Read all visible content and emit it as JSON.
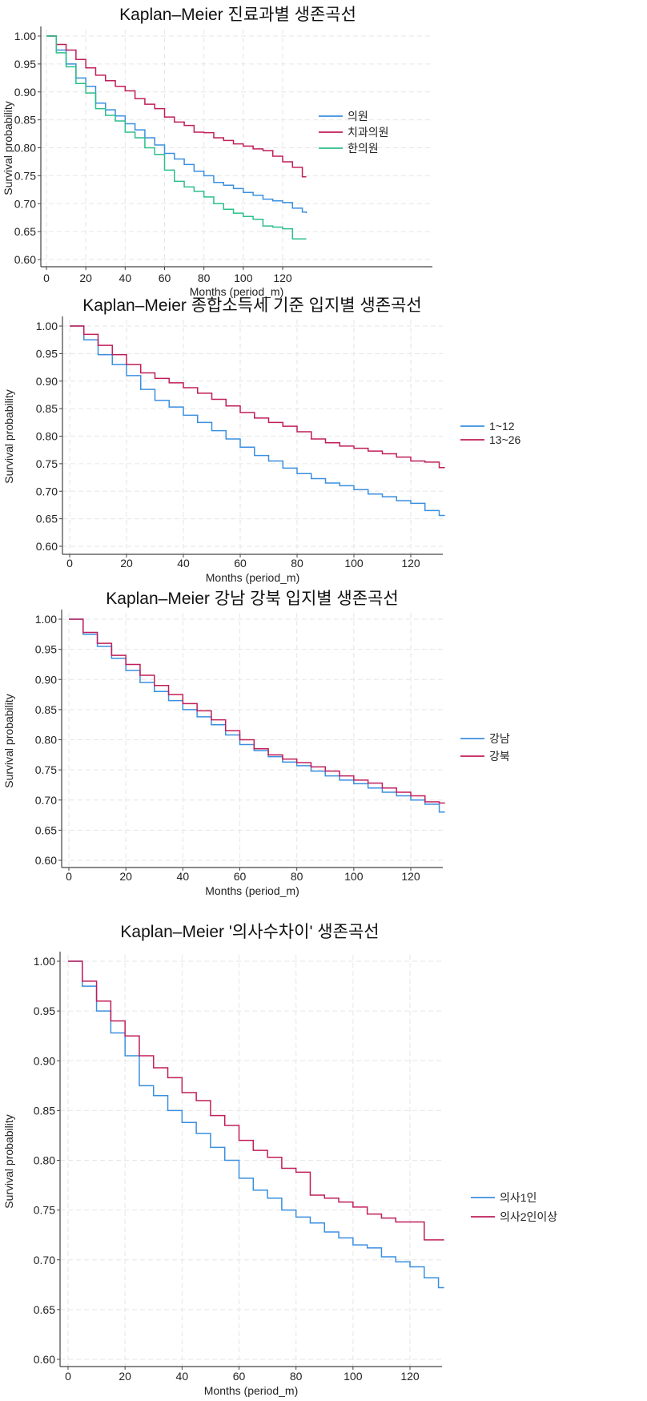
{
  "chart_data": [
    {
      "type": "line",
      "title": "Kaplan–Meier 진료과별 생존곡선",
      "xlabel": "Months (period_m)",
      "ylabel": "Survival probability",
      "xlim": [
        0,
        132
      ],
      "ylim": [
        0.6,
        1.0
      ],
      "xticks": [
        "0",
        "20",
        "40",
        "60",
        "80",
        "100",
        "120"
      ],
      "yticks": [
        "0.60",
        "0.65",
        "0.70",
        "0.75",
        "0.80",
        "0.85",
        "0.90",
        "0.95",
        "1.00"
      ],
      "grid": true,
      "legend_position": "right",
      "x": [
        0,
        5,
        10,
        15,
        20,
        25,
        30,
        35,
        40,
        45,
        50,
        55,
        60,
        65,
        70,
        75,
        80,
        85,
        90,
        95,
        100,
        105,
        110,
        115,
        120,
        125,
        130,
        132
      ],
      "series": [
        {
          "name": "의원",
          "color": "#3a8fe0",
          "values": [
            1,
            0.975,
            0.95,
            0.925,
            0.91,
            0.88,
            0.868,
            0.857,
            0.843,
            0.832,
            0.818,
            0.805,
            0.79,
            0.78,
            0.77,
            0.758,
            0.75,
            0.738,
            0.733,
            0.727,
            0.72,
            0.715,
            0.708,
            0.705,
            0.702,
            0.692,
            0.685,
            0.683
          ]
        },
        {
          "name": "치과의원",
          "color": "#c01e5a",
          "values": [
            1,
            0.985,
            0.975,
            0.958,
            0.943,
            0.93,
            0.92,
            0.91,
            0.902,
            0.888,
            0.878,
            0.87,
            0.855,
            0.846,
            0.84,
            0.828,
            0.827,
            0.818,
            0.813,
            0.807,
            0.803,
            0.798,
            0.795,
            0.785,
            0.775,
            0.765,
            0.748,
            0.748
          ]
        },
        {
          "name": "한의원",
          "color": "#2bbf8a",
          "values": [
            1,
            0.97,
            0.945,
            0.915,
            0.898,
            0.87,
            0.858,
            0.848,
            0.828,
            0.818,
            0.8,
            0.788,
            0.76,
            0.74,
            0.73,
            0.722,
            0.712,
            0.7,
            0.69,
            0.683,
            0.677,
            0.672,
            0.66,
            0.658,
            0.655,
            0.637,
            0.637,
            0.637
          ]
        }
      ]
    },
    {
      "type": "line",
      "title": "Kaplan–Meier 종합소득세 기준 입지별 생존곡선",
      "xlabel": "Months (period_m)",
      "ylabel": "Survival probability",
      "xlim": [
        0,
        132
      ],
      "ylim": [
        0.6,
        1.0
      ],
      "xticks": [
        "0",
        "20",
        "40",
        "60",
        "80",
        "100",
        "120"
      ],
      "yticks": [
        "0.60",
        "0.65",
        "0.70",
        "0.75",
        "0.80",
        "0.85",
        "0.90",
        "0.95",
        "1.00"
      ],
      "grid": true,
      "legend_position": "right",
      "x": [
        0,
        5,
        10,
        15,
        20,
        25,
        30,
        35,
        40,
        45,
        50,
        55,
        60,
        65,
        70,
        75,
        80,
        85,
        90,
        95,
        100,
        105,
        110,
        115,
        120,
        125,
        130,
        132
      ],
      "series": [
        {
          "name": "1~12",
          "color": "#3a8fe0",
          "values": [
            1,
            0.975,
            0.948,
            0.93,
            0.91,
            0.885,
            0.865,
            0.853,
            0.838,
            0.825,
            0.81,
            0.795,
            0.78,
            0.765,
            0.755,
            0.742,
            0.732,
            0.723,
            0.715,
            0.71,
            0.703,
            0.695,
            0.69,
            0.683,
            0.678,
            0.665,
            0.656,
            0.656
          ]
        },
        {
          "name": "13~26",
          "color": "#c01e5a",
          "values": [
            1,
            0.985,
            0.965,
            0.948,
            0.93,
            0.915,
            0.905,
            0.897,
            0.888,
            0.878,
            0.867,
            0.855,
            0.843,
            0.833,
            0.825,
            0.818,
            0.808,
            0.795,
            0.788,
            0.782,
            0.778,
            0.773,
            0.768,
            0.762,
            0.755,
            0.753,
            0.743,
            0.743
          ]
        }
      ]
    },
    {
      "type": "line",
      "title": "Kaplan–Meier 강남 강북 입지별 생존곡선",
      "xlabel": "Months (period_m)",
      "ylabel": "Survival probability",
      "xlim": [
        0,
        132
      ],
      "ylim": [
        0.6,
        1.0
      ],
      "xticks": [
        "0",
        "20",
        "40",
        "60",
        "80",
        "100",
        "120"
      ],
      "yticks": [
        "0.60",
        "0.65",
        "0.70",
        "0.75",
        "0.80",
        "0.85",
        "0.90",
        "0.95",
        "1.00"
      ],
      "grid": true,
      "legend_position": "right",
      "x": [
        0,
        5,
        10,
        15,
        20,
        25,
        30,
        35,
        40,
        45,
        50,
        55,
        60,
        65,
        70,
        75,
        80,
        85,
        90,
        95,
        100,
        105,
        110,
        115,
        120,
        125,
        130,
        132
      ],
      "series": [
        {
          "name": "강남",
          "color": "#3a8fe0",
          "values": [
            1,
            0.975,
            0.955,
            0.935,
            0.915,
            0.895,
            0.88,
            0.865,
            0.85,
            0.838,
            0.825,
            0.808,
            0.792,
            0.782,
            0.772,
            0.763,
            0.757,
            0.748,
            0.74,
            0.733,
            0.727,
            0.72,
            0.713,
            0.707,
            0.7,
            0.693,
            0.68,
            0.68
          ]
        },
        {
          "name": "강북",
          "color": "#c01e5a",
          "values": [
            1,
            0.978,
            0.96,
            0.94,
            0.925,
            0.907,
            0.89,
            0.875,
            0.86,
            0.848,
            0.833,
            0.815,
            0.8,
            0.785,
            0.775,
            0.768,
            0.762,
            0.755,
            0.748,
            0.74,
            0.733,
            0.728,
            0.72,
            0.713,
            0.707,
            0.697,
            0.695,
            0.695
          ]
        }
      ]
    },
    {
      "type": "line",
      "title": "Kaplan–Meier '의사수차이' 생존곡선",
      "xlabel": "Months (period_m)",
      "ylabel": "Survival probability",
      "xlim": [
        0,
        132
      ],
      "ylim": [
        0.6,
        1.0
      ],
      "xticks": [
        "0",
        "20",
        "40",
        "60",
        "80",
        "100",
        "120"
      ],
      "yticks": [
        "0.60",
        "0.65",
        "0.70",
        "0.75",
        "0.80",
        "0.85",
        "0.90",
        "0.95",
        "1.00"
      ],
      "grid": true,
      "legend_position": "right",
      "x": [
        0,
        5,
        10,
        15,
        20,
        25,
        30,
        35,
        40,
        45,
        50,
        55,
        60,
        65,
        70,
        75,
        80,
        85,
        90,
        95,
        100,
        105,
        110,
        115,
        120,
        125,
        130,
        132
      ],
      "series": [
        {
          "name": "의사1인",
          "color": "#3a8fe0",
          "values": [
            1,
            0.975,
            0.95,
            0.928,
            0.905,
            0.875,
            0.865,
            0.85,
            0.838,
            0.827,
            0.813,
            0.8,
            0.782,
            0.77,
            0.762,
            0.75,
            0.743,
            0.737,
            0.728,
            0.722,
            0.715,
            0.712,
            0.703,
            0.698,
            0.693,
            0.682,
            0.672,
            0.672
          ]
        },
        {
          "name": "의사2인이상",
          "color": "#c01e5a",
          "values": [
            1,
            0.98,
            0.96,
            0.94,
            0.925,
            0.905,
            0.893,
            0.883,
            0.868,
            0.86,
            0.845,
            0.835,
            0.82,
            0.81,
            0.803,
            0.792,
            0.788,
            0.765,
            0.762,
            0.758,
            0.753,
            0.746,
            0.742,
            0.738,
            0.738,
            0.72,
            0.72,
            0.72
          ]
        }
      ]
    }
  ]
}
